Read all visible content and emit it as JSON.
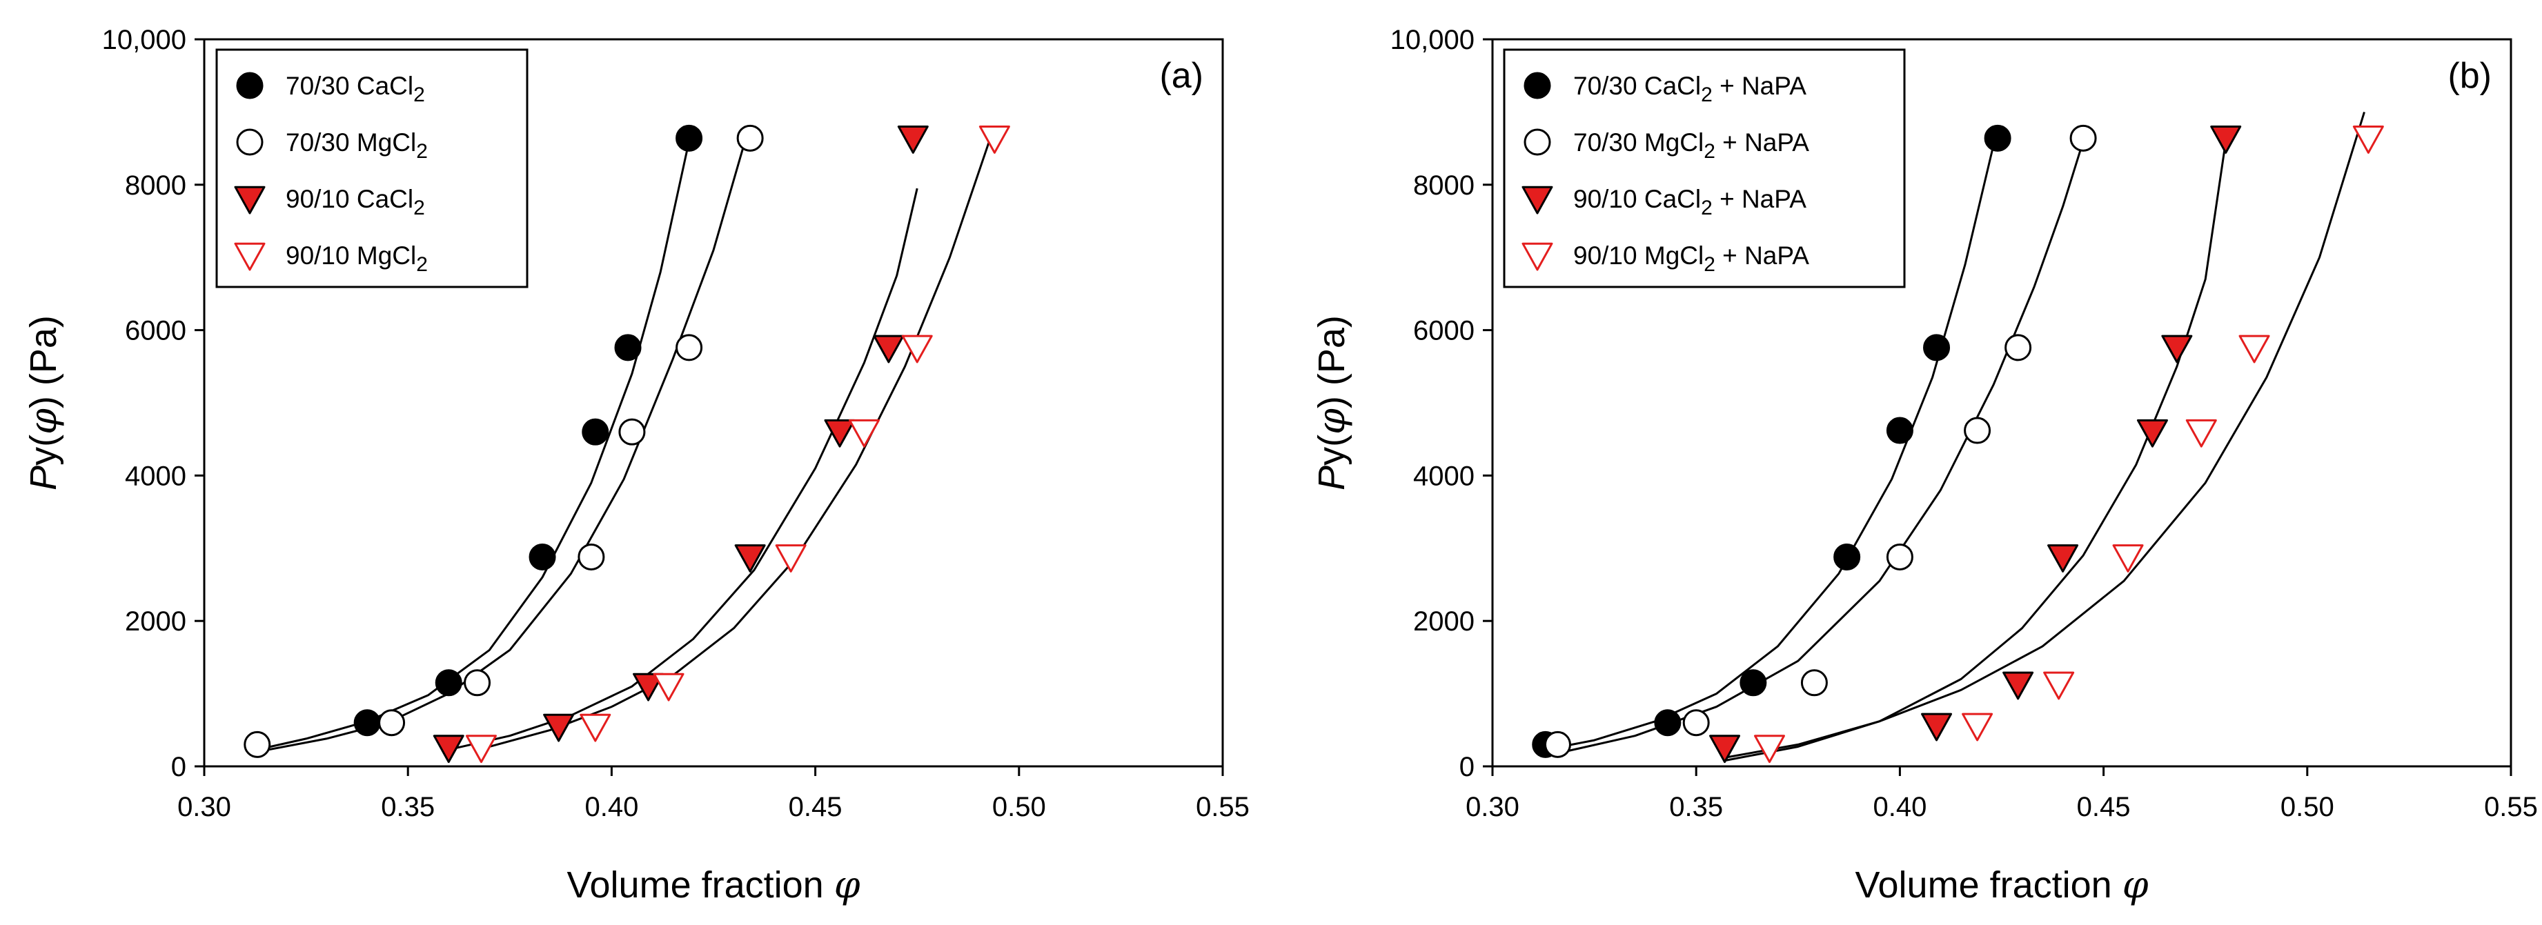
{
  "chart_data": [
    {
      "type": "scatter",
      "panel_label": "(a)",
      "xlabel": "Volume fraction",
      "xlabel_symbol": "φ",
      "ylabel_prefix": "Py(",
      "ylabel_symbol": "φ",
      "ylabel_suffix": ") (Pa)",
      "xlim": [
        0.3,
        0.55
      ],
      "ylim": [
        0,
        10000
      ],
      "xticks": [
        "0.30",
        "0.35",
        "0.40",
        "0.45",
        "0.50",
        "0.55"
      ],
      "yticks": [
        "0",
        "2000",
        "4000",
        "6000",
        "8000",
        "10,000"
      ],
      "legend_position": "top-left",
      "series": [
        {
          "name": "70/30 CaCl",
          "name_sub": "2",
          "name_suffix": "",
          "marker": "circle-filled",
          "color": "#000000",
          "x": [
            0.34,
            0.36,
            0.383,
            0.396,
            0.404,
            0.419
          ],
          "y": [
            600,
            1150,
            2880,
            4600,
            5760,
            8640
          ],
          "fit": {
            "x": [
              0.313,
              0.325,
              0.34,
              0.355,
              0.37,
              0.383,
              0.395,
              0.405,
              0.412,
              0.419
            ],
            "y": [
              230,
              380,
              620,
              980,
              1600,
              2600,
              3900,
              5400,
              6800,
              8600
            ]
          }
        },
        {
          "name": "70/30 MgCl",
          "name_sub": "2",
          "name_suffix": "",
          "marker": "circle-open",
          "color": "#000000",
          "x": [
            0.313,
            0.346,
            0.367,
            0.395,
            0.405,
            0.419,
            0.434
          ],
          "y": [
            300,
            600,
            1150,
            2880,
            4600,
            5760,
            8640
          ],
          "fit": {
            "x": [
              0.313,
              0.33,
              0.345,
              0.36,
              0.375,
              0.39,
              0.403,
              0.415,
              0.425,
              0.433
            ],
            "y": [
              200,
              380,
              600,
              1000,
              1600,
              2650,
              3950,
              5600,
              7100,
              8650
            ]
          }
        },
        {
          "name": "90/10 CaCl",
          "name_sub": "2",
          "name_suffix": "",
          "marker": "triangle-down-filled",
          "color": "#e41e1e",
          "x": [
            0.36,
            0.387,
            0.409,
            0.434,
            0.456,
            0.468,
            0.474
          ],
          "y": [
            260,
            550,
            1110,
            2880,
            4600,
            5760,
            8640
          ],
          "fit": {
            "x": [
              0.36,
              0.375,
              0.39,
              0.405,
              0.42,
              0.435,
              0.45,
              0.462,
              0.47,
              0.475
            ],
            "y": [
              230,
              420,
              700,
              1100,
              1750,
              2700,
              4100,
              5550,
              6750,
              7950
            ]
          }
        },
        {
          "name": "90/10 MgCl",
          "name_sub": "2",
          "name_suffix": "",
          "marker": "triangle-down-open",
          "color": "#e41e1e",
          "x": [
            0.368,
            0.396,
            0.414,
            0.444,
            0.462,
            0.475,
            0.494
          ],
          "y": [
            260,
            550,
            1110,
            2880,
            4600,
            5760,
            8640
          ],
          "fit": {
            "x": [
              0.368,
              0.385,
              0.4,
              0.415,
              0.43,
              0.445,
              0.46,
              0.472,
              0.483,
              0.493
            ],
            "y": [
              240,
              500,
              820,
              1250,
              1900,
              2850,
              4150,
              5500,
              7000,
              8650
            ]
          }
        }
      ]
    },
    {
      "type": "scatter",
      "panel_label": "(b)",
      "xlabel": "Volume fraction",
      "xlabel_symbol": "φ",
      "ylabel_prefix": "Py(",
      "ylabel_symbol": "φ",
      "ylabel_suffix": ") (Pa)",
      "xlim": [
        0.3,
        0.55
      ],
      "ylim": [
        0,
        10000
      ],
      "xticks": [
        "0.30",
        "0.35",
        "0.40",
        "0.45",
        "0.50",
        "0.55"
      ],
      "yticks": [
        "0",
        "2000",
        "4000",
        "6000",
        "8000",
        "10,000"
      ],
      "legend_position": "top-left",
      "series": [
        {
          "name": "70/30 CaCl",
          "name_sub": "2",
          "name_suffix": " + NaPA",
          "marker": "circle-filled",
          "color": "#000000",
          "x": [
            0.313,
            0.343,
            0.364,
            0.387,
            0.4,
            0.409,
            0.424
          ],
          "y": [
            300,
            600,
            1150,
            2880,
            4620,
            5760,
            8640
          ],
          "fit": {
            "x": [
              0.313,
              0.325,
              0.34,
              0.355,
              0.37,
              0.385,
              0.398,
              0.408,
              0.416,
              0.423
            ],
            "y": [
              230,
              360,
              620,
              1000,
              1650,
              2650,
              3950,
              5350,
              6900,
              8550
            ]
          }
        },
        {
          "name": "70/30 MgCl",
          "name_sub": "2",
          "name_suffix": " + NaPA",
          "marker": "circle-open",
          "color": "#000000",
          "x": [
            0.316,
            0.35,
            0.379,
            0.4,
            0.419,
            0.429,
            0.445
          ],
          "y": [
            300,
            600,
            1150,
            2880,
            4620,
            5760,
            8640
          ],
          "fit": {
            "x": [
              0.316,
              0.335,
              0.355,
              0.375,
              0.395,
              0.41,
              0.423,
              0.433,
              0.44,
              0.445
            ],
            "y": [
              180,
              420,
              820,
              1450,
              2550,
              3800,
              5250,
              6600,
              7700,
              8600
            ]
          }
        },
        {
          "name": "90/10 CaCl",
          "name_sub": "2",
          "name_suffix": " + NaPA",
          "marker": "triangle-down-filled",
          "color": "#e41e1e",
          "x": [
            0.357,
            0.409,
            0.429,
            0.44,
            0.462,
            0.468,
            0.48
          ],
          "y": [
            260,
            560,
            1130,
            2880,
            4600,
            5760,
            8640
          ],
          "fit": {
            "x": [
              0.357,
              0.375,
              0.395,
              0.415,
              0.43,
              0.445,
              0.458,
              0.468,
              0.475,
              0.48
            ],
            "y": [
              80,
              270,
              620,
              1200,
              1900,
              2900,
              4150,
              5500,
              6700,
              8600
            ]
          }
        },
        {
          "name": "90/10 MgCl",
          "name_sub": "2",
          "name_suffix": " + NaPA",
          "marker": "triangle-down-open",
          "color": "#e41e1e",
          "x": [
            0.368,
            0.419,
            0.439,
            0.456,
            0.474,
            0.487,
            0.515
          ],
          "y": [
            260,
            560,
            1130,
            2880,
            4600,
            5760,
            8640
          ],
          "fit": {
            "x": [
              0.357,
              0.375,
              0.395,
              0.415,
              0.435,
              0.455,
              0.475,
              0.49,
              0.503,
              0.514
            ],
            "y": [
              120,
              300,
              620,
              1050,
              1650,
              2550,
              3900,
              5350,
              7000,
              9000
            ]
          }
        }
      ]
    }
  ]
}
